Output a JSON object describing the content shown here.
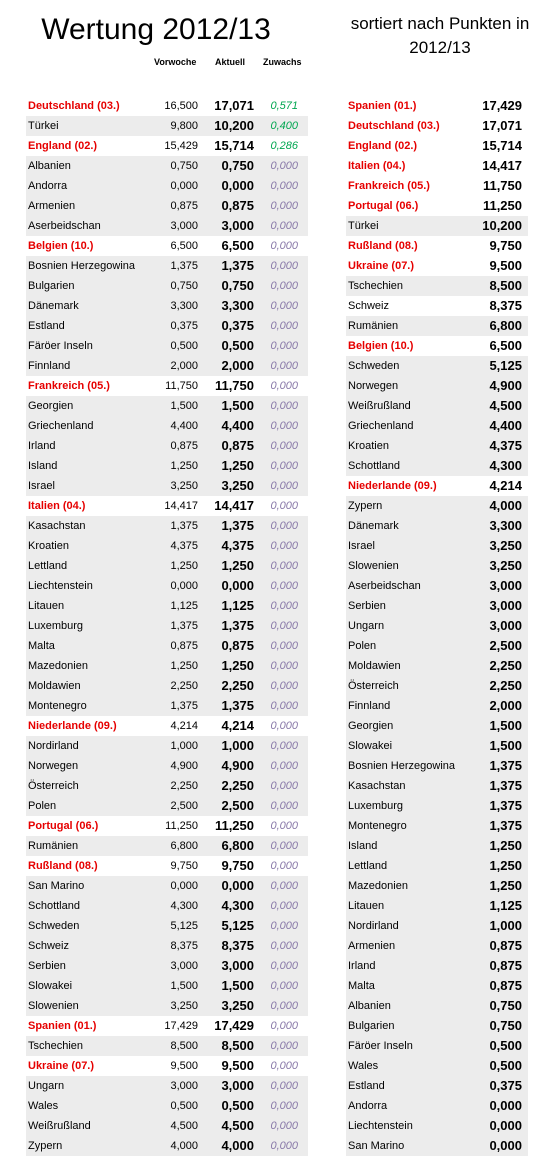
{
  "title": "Wertung 2012/13",
  "right_title": "sortiert nach Punkten in 2012/13",
  "headers": {
    "prev": "Vorwoche",
    "cur": "Aktuell",
    "gain": "Zuwachs"
  },
  "left_rows": [
    {
      "name": "Deutschland (03.)",
      "red": true,
      "prev": "16,500",
      "cur": "17,071",
      "gain": "0,571"
    },
    {
      "name": "Türkei",
      "red": false,
      "prev": "9,800",
      "cur": "10,200",
      "gain": "0,400"
    },
    {
      "name": "England (02.)",
      "red": true,
      "prev": "15,429",
      "cur": "15,714",
      "gain": "0,286"
    },
    {
      "name": "Albanien",
      "red": false,
      "prev": "0,750",
      "cur": "0,750",
      "gain": "0,000"
    },
    {
      "name": "Andorra",
      "red": false,
      "prev": "0,000",
      "cur": "0,000",
      "gain": "0,000"
    },
    {
      "name": "Armenien",
      "red": false,
      "prev": "0,875",
      "cur": "0,875",
      "gain": "0,000"
    },
    {
      "name": "Aserbeidschan",
      "red": false,
      "prev": "3,000",
      "cur": "3,000",
      "gain": "0,000"
    },
    {
      "name": "Belgien (10.)",
      "red": true,
      "prev": "6,500",
      "cur": "6,500",
      "gain": "0,000"
    },
    {
      "name": "Bosnien Herzegowina",
      "red": false,
      "prev": "1,375",
      "cur": "1,375",
      "gain": "0,000"
    },
    {
      "name": "Bulgarien",
      "red": false,
      "prev": "0,750",
      "cur": "0,750",
      "gain": "0,000"
    },
    {
      "name": "Dänemark",
      "red": false,
      "prev": "3,300",
      "cur": "3,300",
      "gain": "0,000"
    },
    {
      "name": "Estland",
      "red": false,
      "prev": "0,375",
      "cur": "0,375",
      "gain": "0,000"
    },
    {
      "name": "Färöer Inseln",
      "red": false,
      "prev": "0,500",
      "cur": "0,500",
      "gain": "0,000"
    },
    {
      "name": "Finnland",
      "red": false,
      "prev": "2,000",
      "cur": "2,000",
      "gain": "0,000"
    },
    {
      "name": "Frankreich (05.)",
      "red": true,
      "prev": "11,750",
      "cur": "11,750",
      "gain": "0,000"
    },
    {
      "name": "Georgien",
      "red": false,
      "prev": "1,500",
      "cur": "1,500",
      "gain": "0,000"
    },
    {
      "name": "Griechenland",
      "red": false,
      "prev": "4,400",
      "cur": "4,400",
      "gain": "0,000"
    },
    {
      "name": "Irland",
      "red": false,
      "prev": "0,875",
      "cur": "0,875",
      "gain": "0,000"
    },
    {
      "name": "Island",
      "red": false,
      "prev": "1,250",
      "cur": "1,250",
      "gain": "0,000"
    },
    {
      "name": "Israel",
      "red": false,
      "prev": "3,250",
      "cur": "3,250",
      "gain": "0,000"
    },
    {
      "name": "Italien (04.)",
      "red": true,
      "prev": "14,417",
      "cur": "14,417",
      "gain": "0,000"
    },
    {
      "name": "Kasachstan",
      "red": false,
      "prev": "1,375",
      "cur": "1,375",
      "gain": "0,000"
    },
    {
      "name": "Kroatien",
      "red": false,
      "prev": "4,375",
      "cur": "4,375",
      "gain": "0,000"
    },
    {
      "name": "Lettland",
      "red": false,
      "prev": "1,250",
      "cur": "1,250",
      "gain": "0,000"
    },
    {
      "name": "Liechtenstein",
      "red": false,
      "prev": "0,000",
      "cur": "0,000",
      "gain": "0,000"
    },
    {
      "name": "Litauen",
      "red": false,
      "prev": "1,125",
      "cur": "1,125",
      "gain": "0,000"
    },
    {
      "name": "Luxemburg",
      "red": false,
      "prev": "1,375",
      "cur": "1,375",
      "gain": "0,000"
    },
    {
      "name": "Malta",
      "red": false,
      "prev": "0,875",
      "cur": "0,875",
      "gain": "0,000"
    },
    {
      "name": "Mazedonien",
      "red": false,
      "prev": "1,250",
      "cur": "1,250",
      "gain": "0,000"
    },
    {
      "name": "Moldawien",
      "red": false,
      "prev": "2,250",
      "cur": "2,250",
      "gain": "0,000"
    },
    {
      "name": "Montenegro",
      "red": false,
      "prev": "1,375",
      "cur": "1,375",
      "gain": "0,000"
    },
    {
      "name": "Niederlande (09.)",
      "red": true,
      "prev": "4,214",
      "cur": "4,214",
      "gain": "0,000"
    },
    {
      "name": "Nordirland",
      "red": false,
      "prev": "1,000",
      "cur": "1,000",
      "gain": "0,000"
    },
    {
      "name": "Norwegen",
      "red": false,
      "prev": "4,900",
      "cur": "4,900",
      "gain": "0,000"
    },
    {
      "name": "Österreich",
      "red": false,
      "prev": "2,250",
      "cur": "2,250",
      "gain": "0,000"
    },
    {
      "name": "Polen",
      "red": false,
      "prev": "2,500",
      "cur": "2,500",
      "gain": "0,000"
    },
    {
      "name": "Portugal (06.)",
      "red": true,
      "prev": "11,250",
      "cur": "11,250",
      "gain": "0,000"
    },
    {
      "name": "Rumänien",
      "red": false,
      "prev": "6,800",
      "cur": "6,800",
      "gain": "0,000"
    },
    {
      "name": "Rußland (08.)",
      "red": true,
      "prev": "9,750",
      "cur": "9,750",
      "gain": "0,000"
    },
    {
      "name": "San Marino",
      "red": false,
      "prev": "0,000",
      "cur": "0,000",
      "gain": "0,000"
    },
    {
      "name": "Schottland",
      "red": false,
      "prev": "4,300",
      "cur": "4,300",
      "gain": "0,000"
    },
    {
      "name": "Schweden",
      "red": false,
      "prev": "5,125",
      "cur": "5,125",
      "gain": "0,000"
    },
    {
      "name": "Schweiz",
      "red": false,
      "prev": "8,375",
      "cur": "8,375",
      "gain": "0,000"
    },
    {
      "name": "Serbien",
      "red": false,
      "prev": "3,000",
      "cur": "3,000",
      "gain": "0,000"
    },
    {
      "name": "Slowakei",
      "red": false,
      "prev": "1,500",
      "cur": "1,500",
      "gain": "0,000"
    },
    {
      "name": "Slowenien",
      "red": false,
      "prev": "3,250",
      "cur": "3,250",
      "gain": "0,000"
    },
    {
      "name": "Spanien (01.)",
      "red": true,
      "prev": "17,429",
      "cur": "17,429",
      "gain": "0,000"
    },
    {
      "name": "Tschechien",
      "red": false,
      "prev": "8,500",
      "cur": "8,500",
      "gain": "0,000"
    },
    {
      "name": "Ukraine (07.)",
      "red": true,
      "prev": "9,500",
      "cur": "9,500",
      "gain": "0,000"
    },
    {
      "name": "Ungarn",
      "red": false,
      "prev": "3,000",
      "cur": "3,000",
      "gain": "0,000"
    },
    {
      "name": "Wales",
      "red": false,
      "prev": "0,500",
      "cur": "0,500",
      "gain": "0,000"
    },
    {
      "name": "Weißrußland",
      "red": false,
      "prev": "4,500",
      "cur": "4,500",
      "gain": "0,000"
    },
    {
      "name": "Zypern",
      "red": false,
      "prev": "4,000",
      "cur": "4,000",
      "gain": "0,000"
    }
  ],
  "right_rows": [
    {
      "name": "Spanien (01.)",
      "red": true,
      "val": "17,429"
    },
    {
      "name": "Deutschland (03.)",
      "red": true,
      "val": "17,071"
    },
    {
      "name": "England (02.)",
      "red": true,
      "val": "15,714"
    },
    {
      "name": "Italien (04.)",
      "red": true,
      "val": "14,417"
    },
    {
      "name": "Frankreich (05.)",
      "red": true,
      "val": "11,750"
    },
    {
      "name": "Portugal (06.)",
      "red": true,
      "val": "11,250"
    },
    {
      "name": "Türkei",
      "red": false,
      "val": "10,200"
    },
    {
      "name": "Rußland (08.)",
      "red": true,
      "val": "9,750"
    },
    {
      "name": "Ukraine (07.)",
      "red": true,
      "val": "9,500"
    },
    {
      "name": "Tschechien",
      "red": false,
      "val": "8,500"
    },
    {
      "name": "Schweiz",
      "red": false,
      "val": "8,375"
    },
    {
      "name": "Rumänien",
      "red": false,
      "val": "6,800"
    },
    {
      "name": "Belgien (10.)",
      "red": true,
      "val": "6,500"
    },
    {
      "name": "Schweden",
      "red": false,
      "val": "5,125"
    },
    {
      "name": "Norwegen",
      "red": false,
      "val": "4,900"
    },
    {
      "name": "Weißrußland",
      "red": false,
      "val": "4,500"
    },
    {
      "name": "Griechenland",
      "red": false,
      "val": "4,400"
    },
    {
      "name": "Kroatien",
      "red": false,
      "val": "4,375"
    },
    {
      "name": "Schottland",
      "red": false,
      "val": "4,300"
    },
    {
      "name": "Niederlande (09.)",
      "red": true,
      "val": "4,214"
    },
    {
      "name": "Zypern",
      "red": false,
      "val": "4,000"
    },
    {
      "name": "Dänemark",
      "red": false,
      "val": "3,300"
    },
    {
      "name": "Israel",
      "red": false,
      "val": "3,250"
    },
    {
      "name": "Slowenien",
      "red": false,
      "val": "3,250"
    },
    {
      "name": "Aserbeidschan",
      "red": false,
      "val": "3,000"
    },
    {
      "name": "Serbien",
      "red": false,
      "val": "3,000"
    },
    {
      "name": "Ungarn",
      "red": false,
      "val": "3,000"
    },
    {
      "name": "Polen",
      "red": false,
      "val": "2,500"
    },
    {
      "name": "Moldawien",
      "red": false,
      "val": "2,250"
    },
    {
      "name": "Österreich",
      "red": false,
      "val": "2,250"
    },
    {
      "name": "Finnland",
      "red": false,
      "val": "2,000"
    },
    {
      "name": "Georgien",
      "red": false,
      "val": "1,500"
    },
    {
      "name": "Slowakei",
      "red": false,
      "val": "1,500"
    },
    {
      "name": "Bosnien Herzegowina",
      "red": false,
      "val": "1,375"
    },
    {
      "name": "Kasachstan",
      "red": false,
      "val": "1,375"
    },
    {
      "name": "Luxemburg",
      "red": false,
      "val": "1,375"
    },
    {
      "name": "Montenegro",
      "red": false,
      "val": "1,375"
    },
    {
      "name": "Island",
      "red": false,
      "val": "1,250"
    },
    {
      "name": "Lettland",
      "red": false,
      "val": "1,250"
    },
    {
      "name": "Mazedonien",
      "red": false,
      "val": "1,250"
    },
    {
      "name": "Litauen",
      "red": false,
      "val": "1,125"
    },
    {
      "name": "Nordirland",
      "red": false,
      "val": "1,000"
    },
    {
      "name": "Armenien",
      "red": false,
      "val": "0,875"
    },
    {
      "name": "Irland",
      "red": false,
      "val": "0,875"
    },
    {
      "name": "Malta",
      "red": false,
      "val": "0,875"
    },
    {
      "name": "Albanien",
      "red": false,
      "val": "0,750"
    },
    {
      "name": "Bulgarien",
      "red": false,
      "val": "0,750"
    },
    {
      "name": "Färöer Inseln",
      "red": false,
      "val": "0,500"
    },
    {
      "name": "Wales",
      "red": false,
      "val": "0,500"
    },
    {
      "name": "Estland",
      "red": false,
      "val": "0,375"
    },
    {
      "name": "Andorra",
      "red": false,
      "val": "0,000"
    },
    {
      "name": "Liechtenstein",
      "red": false,
      "val": "0,000"
    },
    {
      "name": "San Marino",
      "red": false,
      "val": "0,000"
    }
  ]
}
